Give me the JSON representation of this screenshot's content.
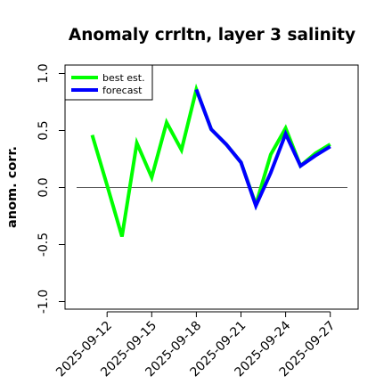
{
  "chart_data": {
    "type": "line",
    "title": "Anomaly crrltn, layer 3 salinity",
    "xlabel": "",
    "ylabel": "anom. corr.",
    "ylim": [
      -1.0,
      1.0
    ],
    "yticks": [
      "-1.0",
      "-0.5",
      "0.0",
      "0.5",
      "1.0"
    ],
    "ytick_values": [
      -1.0,
      -0.5,
      0.0,
      0.5,
      1.0
    ],
    "x": [
      "2025-09-11",
      "2025-09-12",
      "2025-09-13",
      "2025-09-14",
      "2025-09-15",
      "2025-09-16",
      "2025-09-17",
      "2025-09-18",
      "2025-09-19",
      "2025-09-20",
      "2025-09-21",
      "2025-09-22",
      "2025-09-23",
      "2025-09-24",
      "2025-09-25",
      "2025-09-26",
      "2025-09-27"
    ],
    "xticks": [
      "2025-09-12",
      "2025-09-15",
      "2025-09-18",
      "2025-09-21",
      "2025-09-24",
      "2025-09-27"
    ],
    "highlight_tick": "2025-09-18",
    "highlight_color": "#228B22",
    "reference_line": 0.0,
    "series": [
      {
        "name": "best est.",
        "color": "#00ff00",
        "values": [
          0.46,
          0.02,
          -0.43,
          0.39,
          0.09,
          0.57,
          0.33,
          0.86,
          0.51,
          0.38,
          0.22,
          -0.15,
          0.29,
          0.52,
          0.19,
          0.3,
          0.38
        ]
      },
      {
        "name": "forecast",
        "color": "#0000ff",
        "values": [
          null,
          null,
          null,
          null,
          null,
          null,
          null,
          0.86,
          0.51,
          0.38,
          0.22,
          -0.16,
          0.13,
          0.47,
          0.19,
          0.28,
          0.36
        ]
      }
    ],
    "legend_position": "top-left",
    "grid": false
  }
}
